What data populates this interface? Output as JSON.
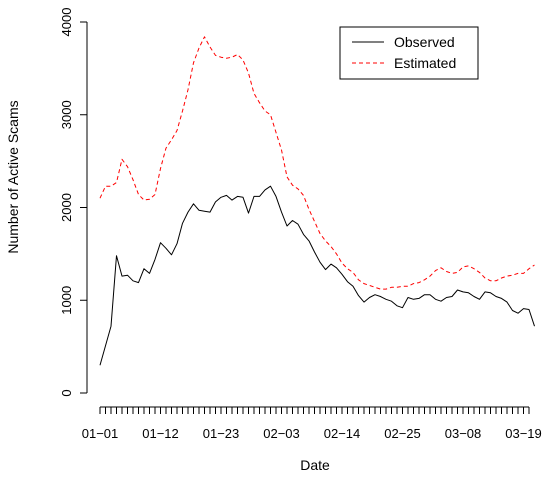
{
  "chart_data": {
    "type": "line",
    "xlabel": "Date",
    "ylabel": "Number of Active Scams",
    "x_tick_labels": [
      "01−01",
      "01−12",
      "01−23",
      "02−03",
      "02−14",
      "02−25",
      "03−08",
      "03−19"
    ],
    "x_tick_label_index": [
      0,
      11,
      22,
      33,
      44,
      55,
      66,
      77
    ],
    "y_ticks": [
      0,
      1000,
      2000,
      3000,
      4000
    ],
    "ylim": [
      0,
      4000
    ],
    "x_range_days": [
      0,
      78
    ],
    "legend_position": "top-right",
    "series": [
      {
        "name": "Observed",
        "color": "#000000",
        "dash": "solid",
        "values": [
          300,
          510,
          720,
          1480,
          1260,
          1270,
          1210,
          1190,
          1340,
          1290,
          1440,
          1620,
          1560,
          1490,
          1610,
          1830,
          1950,
          2040,
          1970,
          1960,
          1950,
          2060,
          2110,
          2130,
          2080,
          2120,
          2110,
          1940,
          2120,
          2120,
          2190,
          2230,
          2120,
          1950,
          1800,
          1860,
          1820,
          1710,
          1640,
          1520,
          1410,
          1330,
          1390,
          1350,
          1280,
          1200,
          1150,
          1050,
          980,
          1030,
          1060,
          1040,
          1010,
          990,
          940,
          920,
          1030,
          1010,
          1020,
          1060,
          1060,
          1010,
          990,
          1030,
          1040,
          1110,
          1090,
          1080,
          1040,
          1010,
          1090,
          1080,
          1040,
          1020,
          980,
          890,
          860,
          910,
          900,
          720
        ]
      },
      {
        "name": "Estimated",
        "color": "#ff0000",
        "dash": "dashed",
        "values": [
          2100,
          2230,
          2230,
          2270,
          2520,
          2440,
          2300,
          2140,
          2080,
          2090,
          2140,
          2420,
          2640,
          2730,
          2830,
          3040,
          3270,
          3560,
          3720,
          3840,
          3730,
          3640,
          3620,
          3610,
          3620,
          3650,
          3590,
          3450,
          3230,
          3130,
          3040,
          3000,
          2810,
          2620,
          2330,
          2240,
          2200,
          2130,
          1980,
          1850,
          1720,
          1640,
          1580,
          1500,
          1400,
          1340,
          1300,
          1220,
          1180,
          1160,
          1140,
          1120,
          1120,
          1140,
          1140,
          1150,
          1150,
          1180,
          1190,
          1220,
          1260,
          1320,
          1350,
          1310,
          1290,
          1300,
          1360,
          1370,
          1340,
          1300,
          1240,
          1210,
          1210,
          1240,
          1260,
          1270,
          1290,
          1290,
          1340,
          1380
        ]
      }
    ]
  }
}
